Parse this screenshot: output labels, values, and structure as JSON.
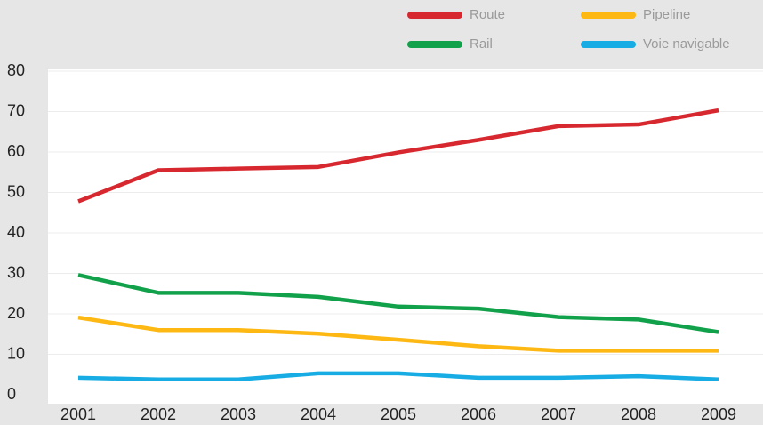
{
  "chart_data": {
    "type": "line",
    "x": [
      "2001",
      "2002",
      "2003",
      "2004",
      "2005",
      "2006",
      "2007",
      "2008",
      "2009"
    ],
    "series": [
      {
        "name": "Route",
        "color": "#d7282f",
        "values": [
          47.8,
          55.5,
          55.9,
          56.3,
          59.9,
          63.0,
          66.4,
          66.8,
          70.3
        ]
      },
      {
        "name": "Pipeline",
        "color": "#fdb813",
        "values": [
          19.1,
          16.0,
          16.0,
          15.1,
          13.6,
          12.0,
          10.9,
          10.9,
          10.9
        ]
      },
      {
        "name": "Rail",
        "color": "#12a14b",
        "values": [
          29.6,
          25.2,
          25.2,
          24.2,
          21.8,
          21.3,
          19.2,
          18.6,
          15.5
        ]
      },
      {
        "name": "Voie navigable",
        "color": "#17ace3",
        "values": [
          4.2,
          3.8,
          3.8,
          5.3,
          5.3,
          4.2,
          4.2,
          4.6,
          3.8
        ]
      }
    ],
    "ylim": [
      0,
      80
    ],
    "yticks": [
      0,
      10,
      20,
      30,
      40,
      50,
      60,
      70,
      80
    ],
    "grid": true
  }
}
